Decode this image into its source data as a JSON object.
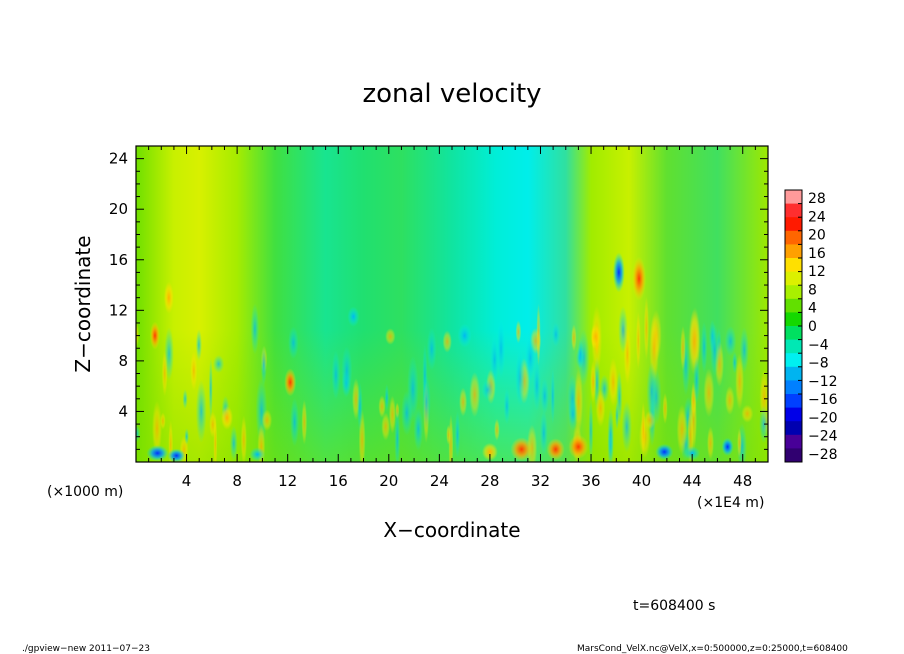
{
  "chart_data": {
    "type": "heatmap",
    "title": "zonal velocity",
    "xlabel": "X−coordinate",
    "ylabel": "Z−coordinate",
    "x_unit_left": "(×1000 m)",
    "x_unit_right": "(×1E4 m)",
    "xlim": [
      0,
      50
    ],
    "ylim": [
      0,
      25
    ],
    "x_ticks": [
      "4",
      "8",
      "12",
      "16",
      "20",
      "24",
      "28",
      "32",
      "36",
      "40",
      "44",
      "48"
    ],
    "y_ticks": [
      "4",
      "8",
      "12",
      "16",
      "20",
      "24"
    ],
    "colorbar": {
      "labels": [
        "28",
        "24",
        "20",
        "16",
        "12",
        "8",
        "4",
        "0",
        "−4",
        "−8",
        "−12",
        "−16",
        "−20",
        "−24",
        "−28"
      ],
      "colors": [
        "#ff9a9a",
        "#ff2e2e",
        "#ff1a00",
        "#ff6600",
        "#ffa000",
        "#ffe000",
        "#dcf000",
        "#a8f000",
        "#62e000",
        "#14d800",
        "#00e060",
        "#00e8b4",
        "#00f0f0",
        "#00b4f0",
        "#0080ff",
        "#0040ff",
        "#0000e8",
        "#0000b0",
        "#480098",
        "#300070"
      ]
    },
    "timestamp": "t=608400 s"
  },
  "footer": {
    "left": "./gpview−new   2011−07−23",
    "right": "MarsCond_VelX.nc@VelX,x=0:500000,z=0:25000,t=608400"
  }
}
